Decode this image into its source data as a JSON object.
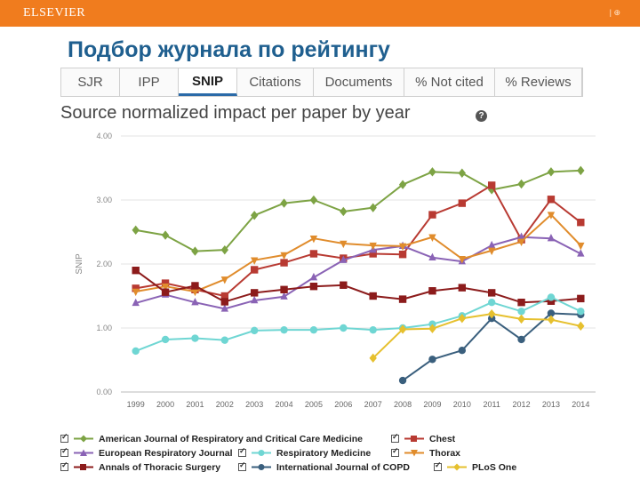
{
  "header": {
    "brand": "ELSEVIER",
    "page_marker": "| ⊕"
  },
  "slide": {
    "title": "Подбор журнала по рейтингу"
  },
  "tabs": [
    {
      "label": "SJR",
      "active": false
    },
    {
      "label": "IPP",
      "active": false
    },
    {
      "label": "SNIP",
      "active": true
    },
    {
      "label": "Citations",
      "active": false
    },
    {
      "label": "Documents",
      "active": false
    },
    {
      "label": "% Not cited",
      "active": false
    },
    {
      "label": "% Reviews",
      "active": false
    }
  ],
  "help": {
    "icon": "help-icon",
    "glyph": "?"
  },
  "chart_data": {
    "type": "line",
    "title": "Source normalized impact per paper by year",
    "xlabel": "",
    "ylabel": "SNIP",
    "ylim": [
      0,
      4
    ],
    "y_ticks": [
      "0.00",
      "1.00",
      "2.00",
      "3.00",
      "4.00"
    ],
    "grid": true,
    "legend_position": "bottom",
    "categories": [
      "1999",
      "2000",
      "2001",
      "2002",
      "2003",
      "2004",
      "2005",
      "2006",
      "2007",
      "2008",
      "2009",
      "2010",
      "2011",
      "2012",
      "2013",
      "2014"
    ],
    "series": [
      {
        "name": "American Journal of Respiratory and Critical Care Medicine",
        "color": "#7da344",
        "marker": "diamond",
        "values": [
          2.53,
          2.45,
          2.2,
          2.22,
          2.76,
          2.95,
          3.0,
          2.82,
          2.88,
          3.24,
          3.44,
          3.42,
          3.16,
          3.25,
          3.44,
          3.46
        ]
      },
      {
        "name": "Chest",
        "color": "#b83a32",
        "marker": "square",
        "values": [
          1.62,
          1.7,
          1.6,
          1.5,
          1.91,
          2.02,
          2.16,
          2.09,
          2.16,
          2.15,
          2.77,
          2.95,
          3.23,
          2.38,
          3.01,
          2.65
        ]
      },
      {
        "name": "European Respiratory Journal",
        "color": "#8a63b5",
        "marker": "triangle",
        "values": [
          1.39,
          1.52,
          1.4,
          1.3,
          1.43,
          1.49,
          1.79,
          2.06,
          2.22,
          2.28,
          2.1,
          2.04,
          2.29,
          2.42,
          2.4,
          2.16
        ]
      },
      {
        "name": "Thorax",
        "color": "#e08c2c",
        "marker": "triangle-down",
        "values": [
          1.57,
          1.65,
          1.57,
          1.76,
          2.06,
          2.14,
          2.4,
          2.32,
          2.29,
          2.28,
          2.42,
          2.08,
          2.21,
          2.35,
          2.77,
          2.29
        ]
      },
      {
        "name": "Annals of Thoracic Surgery",
        "color": "#8c1b1b",
        "marker": "square",
        "values": [
          1.9,
          1.56,
          1.66,
          1.41,
          1.55,
          1.6,
          1.65,
          1.67,
          1.5,
          1.45,
          1.58,
          1.63,
          1.55,
          1.4,
          1.42,
          1.46
        ]
      },
      {
        "name": "International Journal of COPD",
        "color": "#3a5f7d",
        "marker": "circle",
        "values": [
          null,
          null,
          null,
          null,
          null,
          null,
          null,
          null,
          null,
          0.18,
          0.51,
          0.65,
          1.15,
          0.82,
          1.23,
          1.21
        ]
      },
      {
        "name": "Respiratory Medicine",
        "color": "#6fd6d3",
        "marker": "circle",
        "values": [
          0.64,
          0.82,
          0.84,
          0.81,
          0.96,
          0.97,
          0.97,
          1.0,
          0.97,
          1.0,
          1.06,
          1.19,
          1.4,
          1.26,
          1.48,
          1.26
        ]
      },
      {
        "name": "PLoS One",
        "color": "#e6c02e",
        "marker": "diamond",
        "values": [
          null,
          null,
          null,
          null,
          null,
          null,
          null,
          null,
          0.53,
          0.98,
          0.99,
          1.15,
          1.22,
          1.14,
          1.13,
          1.03
        ]
      }
    ]
  },
  "legend": [
    {
      "label": "American Journal of Respiratory and Critical Care Medicine",
      "checked": true,
      "series": 0
    },
    {
      "label": "Chest",
      "checked": true,
      "series": 1
    },
    {
      "label": "European Respiratory Journal",
      "checked": true,
      "series": 2
    },
    {
      "label": "Respiratory Medicine",
      "checked": true,
      "series": 6
    },
    {
      "label": "Thorax",
      "checked": true,
      "series": 3
    },
    {
      "label": "Annals of Thoracic Surgery",
      "checked": true,
      "series": 4
    },
    {
      "label": "International Journal of COPD",
      "checked": true,
      "series": 5
    },
    {
      "label": "PLoS One",
      "checked": true,
      "series": 7
    }
  ]
}
